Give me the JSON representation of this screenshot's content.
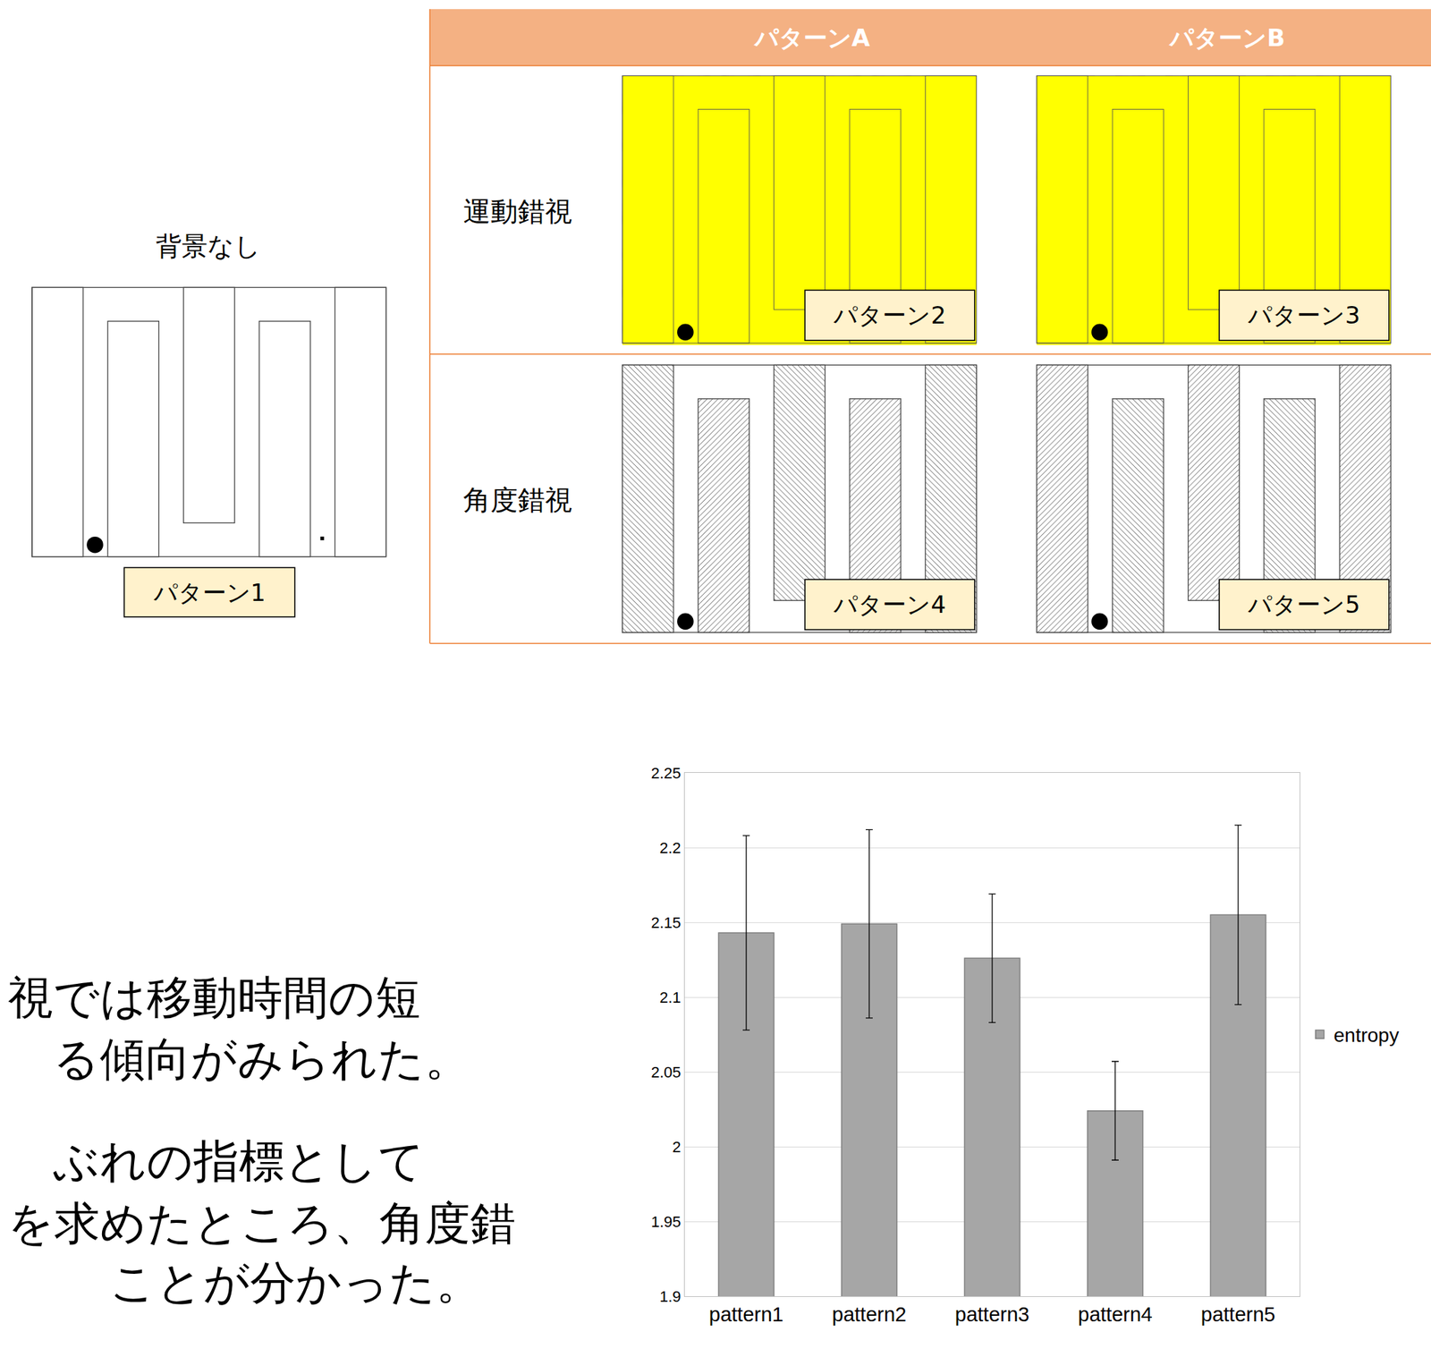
{
  "chart_data": {
    "type": "bar",
    "categories": [
      "pattern1",
      "pattern2",
      "pattern3",
      "pattern4",
      "pattern5"
    ],
    "series": [
      {
        "name": "entropy",
        "color": "#a6a6a6",
        "values": [
          2.143,
          2.149,
          2.126,
          2.024,
          2.155
        ],
        "error": [
          0.065,
          0.063,
          0.043,
          0.033,
          0.06
        ]
      }
    ],
    "ylim": [
      1.9,
      2.25
    ],
    "yticks": [
      1.9,
      1.95,
      2,
      2.05,
      2.1,
      2.15,
      2.2,
      2.25
    ],
    "grid": true,
    "legend": "right"
  },
  "diagram": {
    "no_background": {
      "heading": "背景なし",
      "label": "パターン1"
    },
    "columns": [
      "パターンA",
      "パターンB"
    ],
    "rows": [
      {
        "heading": "運動錯視",
        "labels": [
          "パターン2",
          "パターン3"
        ]
      },
      {
        "heading": "角度錯視",
        "labels": [
          "パターン4",
          "パターン5"
        ]
      }
    ]
  },
  "text": {
    "lines": [
      "視では移動時間の短",
      "る傾向がみられた。",
      "ぶれの指標として",
      "を求めたところ、角度錯",
      "ことが分かった。"
    ]
  }
}
